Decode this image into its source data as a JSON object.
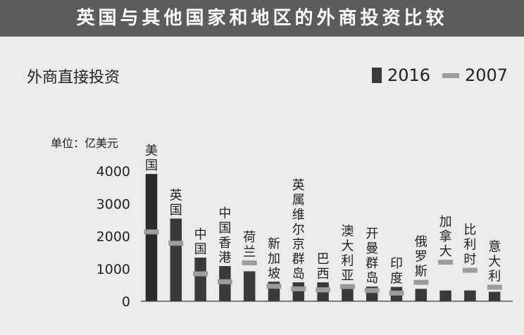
{
  "title": "英国与其他国家和地区的外商投资比较",
  "subtitle": "外商直接投资",
  "unit": "单位：亿美元",
  "colors": {
    "title_bg": "#5c5c5c",
    "background": "#ebebeb",
    "bar_2016": "#3a3a3a",
    "bar_2016_first": "#2b2b2b",
    "marker_2007": "#9c9c9c"
  },
  "chart_data": {
    "type": "bar",
    "title": "外商直接投资",
    "ylabel": "单位：亿美元",
    "ylim": [
      0,
      4000
    ],
    "yticks": [
      "4000",
      "3000",
      "2000",
      "1000",
      "0"
    ],
    "grid": false,
    "legend_position": "top-right",
    "categories": [
      "美国",
      "英国",
      "中国",
      "中国香港",
      "荷兰",
      "新加坡",
      "英属维尔京群岛",
      "巴西",
      "澳大利亚",
      "开曼群岛",
      "印度",
      "俄罗斯",
      "加拿大",
      "比利时",
      "意大利"
    ],
    "series": [
      {
        "name": "2016",
        "style": "bar",
        "values": [
          3910,
          2540,
          1340,
          1080,
          920,
          600,
          580,
          580,
          470,
          450,
          440,
          380,
          330,
          330,
          290
        ]
      },
      {
        "name": "2007",
        "style": "marker",
        "values": [
          2130,
          1780,
          840,
          600,
          1180,
          460,
          380,
          350,
          450,
          330,
          250,
          580,
          1200,
          950,
          430
        ]
      }
    ]
  }
}
